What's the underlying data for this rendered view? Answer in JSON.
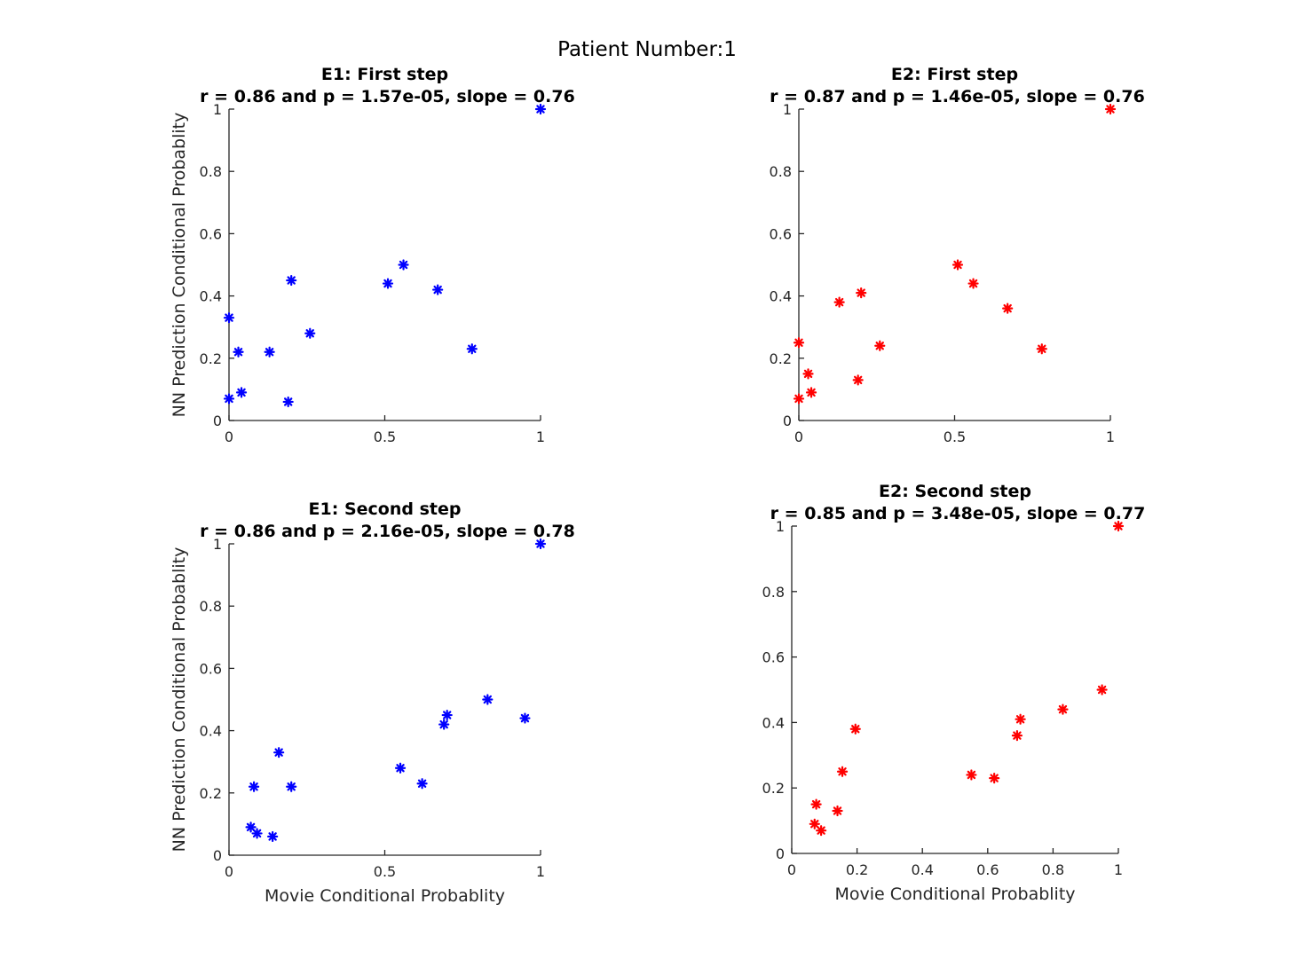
{
  "figure_title": "Patient Number:1",
  "chart_data": [
    {
      "type": "scatter",
      "title": "E1: First step",
      "subtitle": "r = 0.86 and p = 1.57e-05, slope = 0.76",
      "xlabel": "",
      "ylabel": "NN Prediction Conditional Probablity",
      "xlim": [
        0,
        1
      ],
      "ylim": [
        0,
        1
      ],
      "xticks": [
        "0",
        "0.5",
        "1"
      ],
      "yticks": [
        "0",
        "0.2",
        "0.4",
        "0.6",
        "0.8",
        "1"
      ],
      "color": "#0000ff",
      "marker": "asterisk",
      "points": [
        {
          "x": 0.0,
          "y": 0.33
        },
        {
          "x": 0.0,
          "y": 0.07
        },
        {
          "x": 0.03,
          "y": 0.22
        },
        {
          "x": 0.04,
          "y": 0.09
        },
        {
          "x": 0.13,
          "y": 0.22
        },
        {
          "x": 0.19,
          "y": 0.06
        },
        {
          "x": 0.2,
          "y": 0.45
        },
        {
          "x": 0.26,
          "y": 0.28
        },
        {
          "x": 0.51,
          "y": 0.44
        },
        {
          "x": 0.56,
          "y": 0.5
        },
        {
          "x": 0.67,
          "y": 0.42
        },
        {
          "x": 0.78,
          "y": 0.23
        },
        {
          "x": 1.0,
          "y": 1.0
        }
      ]
    },
    {
      "type": "scatter",
      "title": "E2: First step",
      "subtitle": "r = 0.87 and p = 1.46e-05, slope = 0.76",
      "xlabel": "",
      "ylabel": "",
      "xlim": [
        0,
        1
      ],
      "ylim": [
        0,
        1
      ],
      "xticks": [
        "0",
        "0.5",
        "1"
      ],
      "yticks": [
        "0",
        "0.2",
        "0.4",
        "0.6",
        "0.8",
        "1"
      ],
      "color": "#ff0000",
      "marker": "asterisk",
      "points": [
        {
          "x": 0.0,
          "y": 0.25
        },
        {
          "x": 0.0,
          "y": 0.07
        },
        {
          "x": 0.03,
          "y": 0.15
        },
        {
          "x": 0.04,
          "y": 0.09
        },
        {
          "x": 0.13,
          "y": 0.38
        },
        {
          "x": 0.19,
          "y": 0.13
        },
        {
          "x": 0.2,
          "y": 0.41
        },
        {
          "x": 0.26,
          "y": 0.24
        },
        {
          "x": 0.51,
          "y": 0.5
        },
        {
          "x": 0.56,
          "y": 0.44
        },
        {
          "x": 0.67,
          "y": 0.36
        },
        {
          "x": 0.78,
          "y": 0.23
        },
        {
          "x": 1.0,
          "y": 1.0
        }
      ]
    },
    {
      "type": "scatter",
      "title": "E1: Second step",
      "subtitle": "r = 0.86 and p = 2.16e-05, slope = 0.78",
      "xlabel": "Movie Conditional Probablity",
      "ylabel": "NN Prediction Conditional Probablity",
      "xlim": [
        0,
        1
      ],
      "ylim": [
        0,
        1
      ],
      "xticks": [
        "0",
        "0.5",
        "1"
      ],
      "yticks": [
        "0",
        "0.2",
        "0.4",
        "0.6",
        "0.8",
        "1"
      ],
      "color": "#0000ff",
      "marker": "asterisk",
      "points": [
        {
          "x": 0.07,
          "y": 0.09
        },
        {
          "x": 0.08,
          "y": 0.22
        },
        {
          "x": 0.09,
          "y": 0.07
        },
        {
          "x": 0.14,
          "y": 0.06
        },
        {
          "x": 0.16,
          "y": 0.33
        },
        {
          "x": 0.2,
          "y": 0.22
        },
        {
          "x": 0.55,
          "y": 0.28
        },
        {
          "x": 0.62,
          "y": 0.23
        },
        {
          "x": 0.69,
          "y": 0.42
        },
        {
          "x": 0.7,
          "y": 0.45
        },
        {
          "x": 0.83,
          "y": 0.5
        },
        {
          "x": 0.95,
          "y": 0.44
        },
        {
          "x": 1.0,
          "y": 1.0
        }
      ]
    },
    {
      "type": "scatter",
      "title": "E2: Second step",
      "subtitle": "r = 0.85 and p = 3.48e-05, slope = 0.77",
      "xlabel": "Movie Conditional Probablity",
      "ylabel": "",
      "xlim": [
        0,
        1
      ],
      "ylim": [
        0,
        1
      ],
      "xticks": [
        "0",
        "0.2",
        "0.4",
        "0.6",
        "0.8",
        "1"
      ],
      "yticks": [
        "0",
        "0.2",
        "0.4",
        "0.6",
        "0.8",
        "1"
      ],
      "color": "#ff0000",
      "marker": "asterisk",
      "points": [
        {
          "x": 0.07,
          "y": 0.09
        },
        {
          "x": 0.075,
          "y": 0.15
        },
        {
          "x": 0.09,
          "y": 0.07
        },
        {
          "x": 0.14,
          "y": 0.13
        },
        {
          "x": 0.155,
          "y": 0.25
        },
        {
          "x": 0.195,
          "y": 0.38
        },
        {
          "x": 0.55,
          "y": 0.24
        },
        {
          "x": 0.62,
          "y": 0.23
        },
        {
          "x": 0.69,
          "y": 0.36
        },
        {
          "x": 0.7,
          "y": 0.41
        },
        {
          "x": 0.83,
          "y": 0.44
        },
        {
          "x": 0.95,
          "y": 0.5
        },
        {
          "x": 1.0,
          "y": 1.0
        }
      ]
    }
  ]
}
